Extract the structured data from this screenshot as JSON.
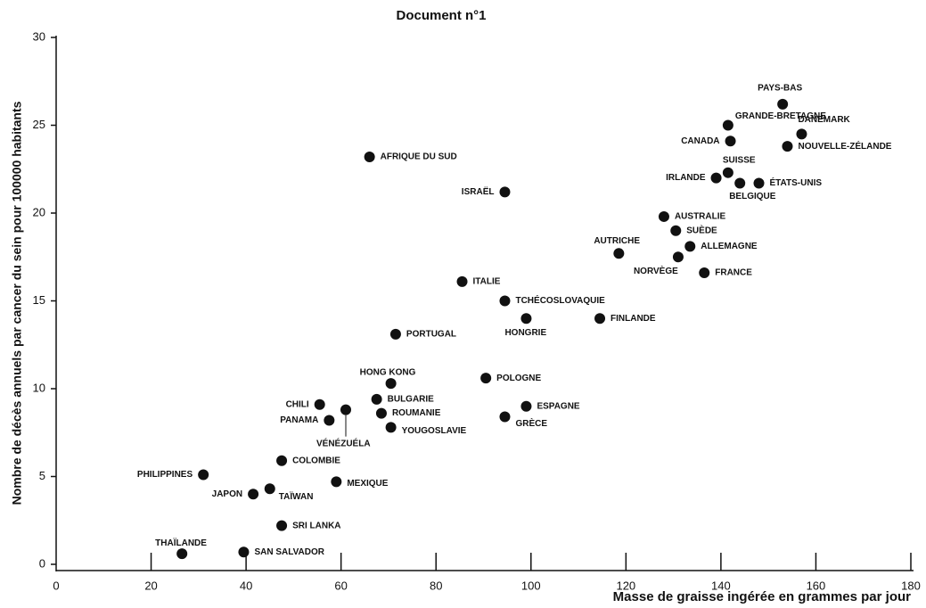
{
  "chart_data": {
    "type": "scatter",
    "title": "Document n°1",
    "x_label": "Masse de graisse ingérée en grammes par jour",
    "y_label": "Nombre de décès annuels par cancer du sein pour 100000 habitants",
    "xlim": [
      0,
      180
    ],
    "ylim": [
      0,
      30
    ],
    "xticks": [
      0,
      20,
      40,
      60,
      80,
      100,
      120,
      140,
      160,
      180
    ],
    "yticks": [
      0,
      5,
      10,
      15,
      20,
      25,
      30
    ],
    "color": "#111111",
    "point_labels": [
      "PAYS-BAS",
      "GRANDE-BRETAGNE",
      "DANEMARK",
      "CANADA",
      "NOUVELLE-ZÉLANDE",
      "SUISSE",
      "IRLANDE",
      "BELGIQUE",
      "ÉTATS-UNIS",
      "AFRIQUE DU SUD",
      "ISRAËL",
      "AUSTRALIE",
      "SUÈDE",
      "ALLEMAGNE",
      "AUTRICHE",
      "NORVÈGE",
      "FRANCE",
      "ITALIE",
      "TCHÉCOSLOVAQUIE",
      "HONGRIE",
      "FINLANDE",
      "PORTUGAL",
      "HONG KONG",
      "POLOGNE",
      "CHILI",
      "BULGARIE",
      "VÉNÉZUÉLA",
      "ESPAGNE",
      "PANAMA",
      "ROUMANIE",
      "GRÈCE",
      "YOUGOSLAVIE",
      "COLOMBIE",
      "PHILIPPINES",
      "MEXIQUE",
      "JAPON",
      "TAÏWAN",
      "SRI LANKA",
      "THAÏLANDE",
      "SAN SALVADOR"
    ],
    "x": [
      153,
      141.5,
      157,
      142,
      154,
      141.5,
      139,
      144,
      148,
      66,
      94.5,
      128,
      130.5,
      133.5,
      118.5,
      131,
      136.5,
      85.5,
      94.5,
      99,
      114.5,
      71.5,
      70.5,
      90.5,
      55.5,
      67.5,
      61,
      99,
      57.5,
      68.5,
      94.5,
      70.5,
      47.5,
      31,
      59,
      41.5,
      45,
      47.5,
      26.5,
      39.5
    ],
    "values": [
      26.2,
      25,
      24.5,
      24.1,
      23.8,
      22.3,
      22,
      21.7,
      21.7,
      23.2,
      21.2,
      19.8,
      19,
      18.1,
      17.7,
      17.5,
      16.6,
      16.1,
      15,
      14,
      14,
      13.1,
      10.3,
      10.6,
      9.1,
      9.4,
      8.8,
      9,
      8.2,
      8.6,
      8.4,
      7.8,
      5.9,
      5.1,
      4.7,
      4,
      4.3,
      2.2,
      0.6,
      0.7
    ]
  }
}
